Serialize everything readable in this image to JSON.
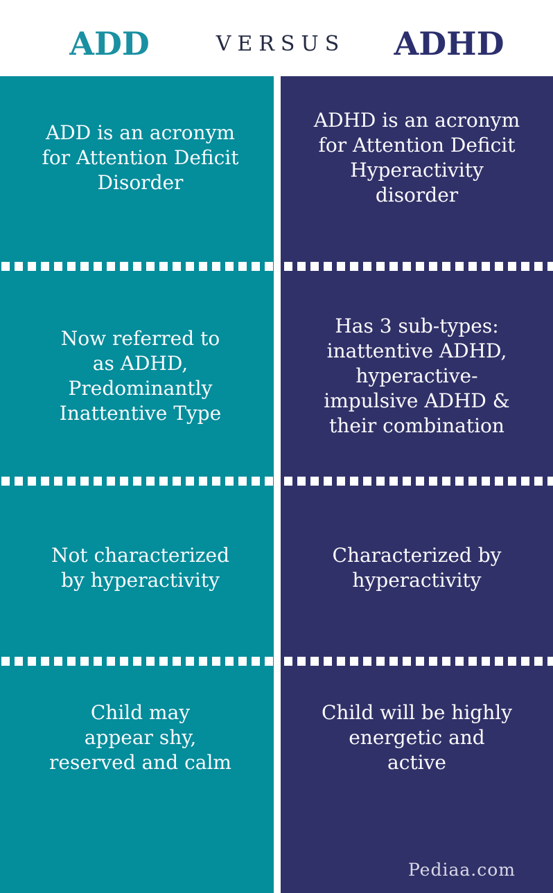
{
  "header": {
    "left_title": "ADD",
    "middle_title": "VERSUS",
    "right_title": "ADHD"
  },
  "columns": {
    "add": {
      "title": "ADD",
      "rows": [
        [
          "ADD is an acronym",
          "for Attention Deficit",
          "Disorder"
        ],
        [
          "Now referred to",
          "as ADHD,",
          "Predominantly",
          "Inattentive Type"
        ],
        [
          "Not characterized",
          "by hyperactivity"
        ],
        [
          "Child may",
          "appear shy,",
          "reserved and calm"
        ]
      ]
    },
    "adhd": {
      "title": "ADHD",
      "rows": [
        [
          "ADHD is an acronym",
          "for Attention Deficit",
          "Hyperactivity",
          "disorder"
        ],
        [
          "Has 3 sub-types:",
          "inattentive ADHD,",
          "hyperactive-",
          "impulsive ADHD &",
          "their combination"
        ],
        [
          "Characterized by",
          "hyperactivity"
        ],
        [
          "Child will be highly",
          "energetic and",
          "active"
        ]
      ]
    }
  },
  "watermark": "Pediaa.com",
  "colors": {
    "teal": "#048d9b",
    "navy": "#313169",
    "header_add": "#1a90a2",
    "header_versus": "#242a42",
    "header_adhd": "#2c2f6d",
    "divider": "#ffffff",
    "body_text": "#fbfbfd",
    "watermark": "#d9d8e7"
  }
}
